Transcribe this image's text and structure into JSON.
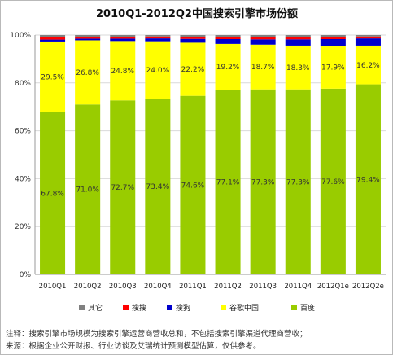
{
  "chart_data": {
    "type": "bar",
    "stacked": true,
    "title": "2010Q1-2012Q2中国搜索引擎市场份额",
    "xlabel": "",
    "ylabel": "",
    "categories": [
      "2010Q1",
      "2010Q2",
      "2010Q3",
      "2010Q4",
      "2011Q1",
      "2011Q2",
      "2011Q3",
      "2011Q4",
      "2012Q1e",
      "2012Q2e"
    ],
    "ylim": [
      0,
      100
    ],
    "yticks": [
      "0%",
      "20%",
      "40%",
      "60%",
      "80%",
      "100%"
    ],
    "grid": true,
    "legend_position": "bottom",
    "series": [
      {
        "name": "百度",
        "color": "#99cc00",
        "values": [
          67.8,
          71.0,
          72.7,
          73.4,
          74.6,
          77.1,
          77.3,
          77.3,
          77.6,
          79.4
        ],
        "labels": [
          "67.8%",
          "71.0%",
          "72.7%",
          "73.4%",
          "74.6%",
          "77.1%",
          "77.3%",
          "77.3%",
          "77.6%",
          "79.4%"
        ]
      },
      {
        "name": "谷歌中国",
        "color": "#ffff00",
        "values": [
          29.5,
          26.8,
          24.8,
          24.0,
          22.2,
          19.2,
          18.7,
          18.3,
          17.9,
          16.2
        ],
        "labels": [
          "29.5%",
          "26.8%",
          "24.8%",
          "24.0%",
          "22.2%",
          "19.2%",
          "18.7%",
          "18.3%",
          "17.9%",
          "16.2%"
        ]
      },
      {
        "name": "搜狗",
        "color": "#0000cc",
        "values": [
          0.8,
          0.7,
          1.0,
          1.2,
          1.6,
          2.0,
          2.2,
          2.6,
          2.8,
          3.0
        ]
      },
      {
        "name": "搜搜",
        "color": "#ff0000",
        "values": [
          1.0,
          0.8,
          0.8,
          0.8,
          0.8,
          0.9,
          1.0,
          0.9,
          0.9,
          0.8
        ]
      },
      {
        "name": "其它",
        "color": "#808080",
        "values": [
          0.9,
          0.7,
          0.7,
          0.6,
          0.8,
          0.8,
          0.8,
          0.9,
          0.8,
          0.6
        ]
      }
    ],
    "legend_order": [
      "其它",
      "搜搜",
      "搜狗",
      "谷歌中国",
      "百度"
    ]
  },
  "notes": [
    "注释：搜索引擎市场规模为搜索引擎运营商营收总和，不包括搜索引擎渠道代理商营收；",
    "来源：根据企业公开财报、行业访谈及艾瑞统计预测模型估算，仅供参考。"
  ]
}
